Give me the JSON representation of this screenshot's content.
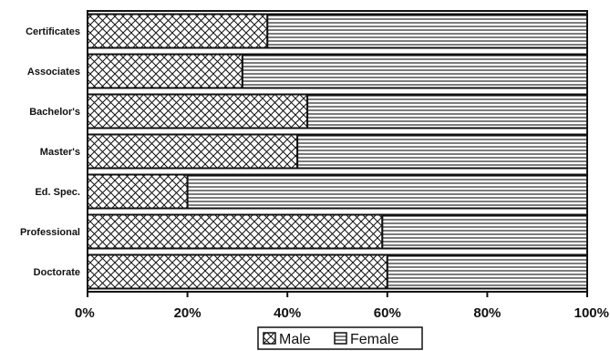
{
  "chart_data": {
    "type": "bar",
    "orientation": "horizontal",
    "stacked": "100%",
    "categories": [
      "Certificates",
      "Associates",
      "Bachelor's",
      "Master's",
      "Ed. Spec.",
      "Professional",
      "Doctorate"
    ],
    "series": [
      {
        "name": "Male",
        "values": [
          36,
          31,
          44,
          42,
          20,
          59,
          60
        ],
        "pattern": "cross-hatch"
      },
      {
        "name": "Female",
        "values": [
          64,
          69,
          56,
          58,
          80,
          41,
          40
        ],
        "pattern": "horizontal-lines"
      }
    ],
    "x_ticks": [
      "0%",
      "20%",
      "40%",
      "60%",
      "80%",
      "100%"
    ],
    "xlim": [
      0,
      100
    ],
    "legend_position": "bottom",
    "grid": false,
    "colors": {
      "ink": "#111111",
      "background": "#ffffff"
    }
  }
}
